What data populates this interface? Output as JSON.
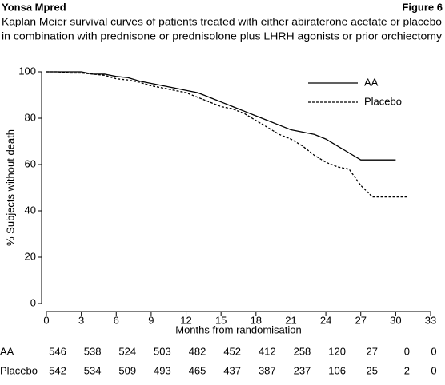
{
  "chart_data": {
    "type": "line",
    "header_left": "Yonsa Mpred",
    "header_right": "Figure 6",
    "title_lines": [
      "Kaplan Meier survival curves of patients treated with either abiraterone acetate or placebo",
      "in combination with prednisone or prednisolone plus LHRH agonists or prior orchiectomy"
    ],
    "xlabel": "Months from randomisation",
    "ylabel": "% Subjects without death",
    "x": [
      0,
      1,
      2,
      3,
      4,
      5,
      6,
      7,
      8,
      9,
      10,
      11,
      12,
      13,
      14,
      15,
      16,
      17,
      18,
      19,
      20,
      21,
      22,
      23,
      24,
      25,
      26,
      27,
      28,
      29,
      30,
      31
    ],
    "series": [
      {
        "name": "AA",
        "color": "#000000",
        "line_style": "solid",
        "values": [
          100,
          100,
          100,
          100,
          99,
          99,
          98,
          97.5,
          96,
          95,
          94,
          93,
          92,
          91,
          89,
          87,
          85,
          83,
          81,
          79,
          77,
          75,
          74,
          73,
          71,
          68,
          65,
          62,
          62,
          62,
          62,
          null
        ]
      },
      {
        "name": "Placebo",
        "color": "#000000",
        "line_style": "dashed",
        "values": [
          100,
          100,
          99.5,
          99.5,
          99,
          98.5,
          97,
          96.5,
          95.5,
          94,
          93,
          92,
          91,
          89,
          87,
          85,
          84,
          82,
          79,
          76,
          73,
          71,
          68,
          64,
          61,
          59,
          58,
          51,
          46,
          46,
          46,
          46
        ]
      }
    ],
    "xlim": [
      0,
      33
    ],
    "xticks": [
      0,
      3,
      6,
      9,
      12,
      15,
      18,
      21,
      24,
      27,
      30,
      33
    ],
    "ylim": [
      0,
      100
    ],
    "yticks": [
      0,
      20,
      40,
      60,
      80,
      100
    ],
    "legend_position": "upper right",
    "risk_table": [
      {
        "name": "AA",
        "values": [
          546,
          538,
          524,
          503,
          482,
          452,
          412,
          258,
          120,
          27,
          0,
          0
        ]
      },
      {
        "name": "Placebo",
        "values": [
          542,
          534,
          509,
          493,
          465,
          437,
          387,
          237,
          106,
          25,
          2,
          0
        ]
      }
    ]
  }
}
